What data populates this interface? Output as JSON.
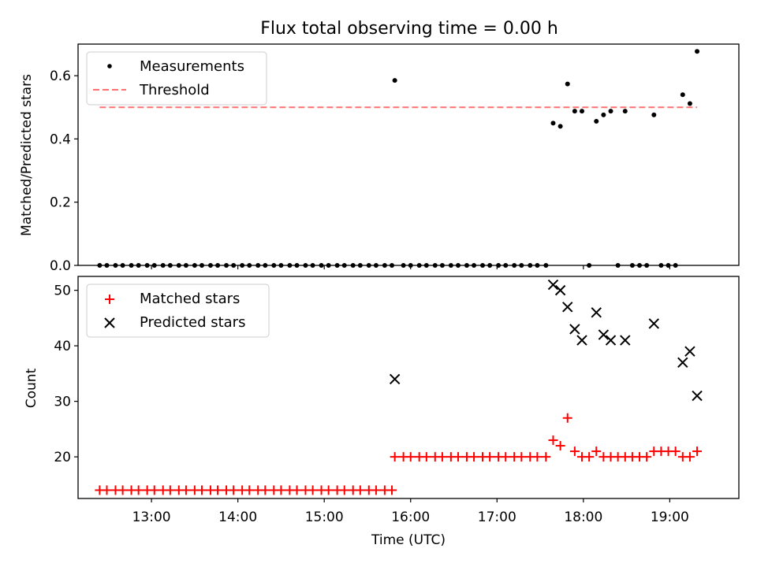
{
  "figure_title": "Flux total observing time = 0.00 h",
  "x_axis_label": "Time (UTC)",
  "x_ticks": [
    "13:00",
    "14:00",
    "15:00",
    "16:00",
    "17:00",
    "18:00",
    "19:00"
  ],
  "chart_data": [
    {
      "type": "scatter",
      "panel": "top",
      "title": "Flux total observing time = 0.00 h",
      "xlabel": "",
      "ylabel": "Matched/Predicted stars",
      "xlim": [
        "12:09",
        "19:48"
      ],
      "ylim": [
        0,
        0.7
      ],
      "yticks": [
        "0.0",
        "0.2",
        "0.4",
        "0.6"
      ],
      "legend": {
        "position": "top-left",
        "entries": [
          "Measurements",
          "Threshold"
        ]
      },
      "colors": {
        "measurements": "#000000",
        "threshold": "#ff7070"
      },
      "series": [
        {
          "name": "Measurements",
          "points": [
            [
              "12:24",
              0
            ],
            [
              "12:29",
              0
            ],
            [
              "12:35",
              0
            ],
            [
              "12:40",
              0
            ],
            [
              "12:46",
              0
            ],
            [
              "12:51",
              0
            ],
            [
              "12:57",
              0
            ],
            [
              "13:02",
              0
            ],
            [
              "13:08",
              0
            ],
            [
              "13:13",
              0
            ],
            [
              "13:19",
              0
            ],
            [
              "13:24",
              0
            ],
            [
              "13:30",
              0
            ],
            [
              "13:35",
              0
            ],
            [
              "13:41",
              0
            ],
            [
              "13:46",
              0
            ],
            [
              "13:52",
              0
            ],
            [
              "13:57",
              0
            ],
            [
              "14:03",
              0
            ],
            [
              "14:08",
              0
            ],
            [
              "14:14",
              0
            ],
            [
              "14:19",
              0
            ],
            [
              "14:25",
              0
            ],
            [
              "14:30",
              0
            ],
            [
              "14:36",
              0
            ],
            [
              "14:41",
              0
            ],
            [
              "14:47",
              0
            ],
            [
              "14:52",
              0
            ],
            [
              "14:58",
              0
            ],
            [
              "15:03",
              0
            ],
            [
              "15:09",
              0
            ],
            [
              "15:14",
              0
            ],
            [
              "15:20",
              0
            ],
            [
              "15:25",
              0
            ],
            [
              "15:31",
              0
            ],
            [
              "15:36",
              0
            ],
            [
              "15:42",
              0
            ],
            [
              "15:47",
              0
            ],
            [
              "15:49",
              0.585
            ],
            [
              "15:55",
              0
            ],
            [
              "16:00",
              0
            ],
            [
              "16:06",
              0
            ],
            [
              "16:11",
              0
            ],
            [
              "16:17",
              0
            ],
            [
              "16:22",
              0
            ],
            [
              "16:28",
              0
            ],
            [
              "16:33",
              0
            ],
            [
              "16:39",
              0
            ],
            [
              "16:44",
              0
            ],
            [
              "16:50",
              0
            ],
            [
              "16:55",
              0
            ],
            [
              "17:01",
              0
            ],
            [
              "17:06",
              0
            ],
            [
              "17:12",
              0
            ],
            [
              "17:17",
              0
            ],
            [
              "17:23",
              0
            ],
            [
              "17:28",
              0
            ],
            [
              "17:34",
              0
            ],
            [
              "17:39",
              0.45
            ],
            [
              "17:44",
              0.44
            ],
            [
              "17:49",
              0.574
            ],
            [
              "17:54",
              0.488
            ],
            [
              "17:59",
              0.488
            ],
            [
              "18:04",
              0
            ],
            [
              "18:09",
              0.456
            ],
            [
              "18:14",
              0.476
            ],
            [
              "18:19",
              0.488
            ],
            [
              "18:24",
              0
            ],
            [
              "18:29",
              0.488
            ],
            [
              "18:34",
              0
            ],
            [
              "18:39",
              0
            ],
            [
              "18:44",
              0
            ],
            [
              "18:49",
              0.476
            ],
            [
              "18:54",
              0
            ],
            [
              "18:59",
              0
            ],
            [
              "19:04",
              0
            ],
            [
              "19:09",
              0.54
            ],
            [
              "19:14",
              0.512
            ],
            [
              "19:19",
              0.677
            ]
          ]
        },
        {
          "name": "Threshold",
          "line": [
            [
              "12:24",
              0.5
            ],
            [
              "19:19",
              0.5
            ]
          ]
        }
      ]
    },
    {
      "type": "scatter",
      "panel": "bottom",
      "title": "",
      "xlabel": "Time (UTC)",
      "ylabel": "Count",
      "xlim": [
        "12:09",
        "19:48"
      ],
      "ylim": [
        12.5,
        52.5
      ],
      "yticks": [
        "20",
        "30",
        "40",
        "50"
      ],
      "legend": {
        "position": "top-left",
        "entries": [
          "Matched stars",
          "Predicted stars"
        ]
      },
      "colors": {
        "matched": "#ff0000",
        "predicted": "#000000"
      },
      "series": [
        {
          "name": "Matched stars",
          "points": [
            [
              "12:24",
              14
            ],
            [
              "12:29",
              14
            ],
            [
              "12:35",
              14
            ],
            [
              "12:40",
              14
            ],
            [
              "12:46",
              14
            ],
            [
              "12:51",
              14
            ],
            [
              "12:57",
              14
            ],
            [
              "13:02",
              14
            ],
            [
              "13:08",
              14
            ],
            [
              "13:13",
              14
            ],
            [
              "13:19",
              14
            ],
            [
              "13:24",
              14
            ],
            [
              "13:30",
              14
            ],
            [
              "13:35",
              14
            ],
            [
              "13:41",
              14
            ],
            [
              "13:46",
              14
            ],
            [
              "13:52",
              14
            ],
            [
              "13:57",
              14
            ],
            [
              "14:03",
              14
            ],
            [
              "14:08",
              14
            ],
            [
              "14:14",
              14
            ],
            [
              "14:19",
              14
            ],
            [
              "14:25",
              14
            ],
            [
              "14:30",
              14
            ],
            [
              "14:36",
              14
            ],
            [
              "14:41",
              14
            ],
            [
              "14:47",
              14
            ],
            [
              "14:52",
              14
            ],
            [
              "14:58",
              14
            ],
            [
              "15:03",
              14
            ],
            [
              "15:09",
              14
            ],
            [
              "15:14",
              14
            ],
            [
              "15:20",
              14
            ],
            [
              "15:25",
              14
            ],
            [
              "15:31",
              14
            ],
            [
              "15:36",
              14
            ],
            [
              "15:42",
              14
            ],
            [
              "15:47",
              14
            ],
            [
              "15:49",
              20
            ],
            [
              "15:55",
              20
            ],
            [
              "16:00",
              20
            ],
            [
              "16:06",
              20
            ],
            [
              "16:11",
              20
            ],
            [
              "16:17",
              20
            ],
            [
              "16:22",
              20
            ],
            [
              "16:28",
              20
            ],
            [
              "16:33",
              20
            ],
            [
              "16:39",
              20
            ],
            [
              "16:44",
              20
            ],
            [
              "16:50",
              20
            ],
            [
              "16:55",
              20
            ],
            [
              "17:01",
              20
            ],
            [
              "17:06",
              20
            ],
            [
              "17:12",
              20
            ],
            [
              "17:17",
              20
            ],
            [
              "17:23",
              20
            ],
            [
              "17:28",
              20
            ],
            [
              "17:34",
              20
            ],
            [
              "17:39",
              23
            ],
            [
              "17:44",
              22
            ],
            [
              "17:49",
              27
            ],
            [
              "17:54",
              21
            ],
            [
              "17:59",
              20
            ],
            [
              "18:04",
              20
            ],
            [
              "18:09",
              21
            ],
            [
              "18:14",
              20
            ],
            [
              "18:19",
              20
            ],
            [
              "18:24",
              20
            ],
            [
              "18:29",
              20
            ],
            [
              "18:34",
              20
            ],
            [
              "18:39",
              20
            ],
            [
              "18:44",
              20
            ],
            [
              "18:49",
              21
            ],
            [
              "18:54",
              21
            ],
            [
              "18:59",
              21
            ],
            [
              "19:04",
              21
            ],
            [
              "19:09",
              20
            ],
            [
              "19:14",
              20
            ],
            [
              "19:19",
              21
            ]
          ]
        },
        {
          "name": "Predicted stars",
          "points": [
            [
              "15:49",
              34
            ],
            [
              "17:39",
              51
            ],
            [
              "17:44",
              50
            ],
            [
              "17:49",
              47
            ],
            [
              "17:54",
              43
            ],
            [
              "17:59",
              41
            ],
            [
              "18:09",
              46
            ],
            [
              "18:14",
              42
            ],
            [
              "18:19",
              41
            ],
            [
              "18:29",
              41
            ],
            [
              "18:49",
              44
            ],
            [
              "19:09",
              37
            ],
            [
              "19:14",
              39
            ],
            [
              "19:19",
              31
            ]
          ]
        }
      ]
    }
  ]
}
